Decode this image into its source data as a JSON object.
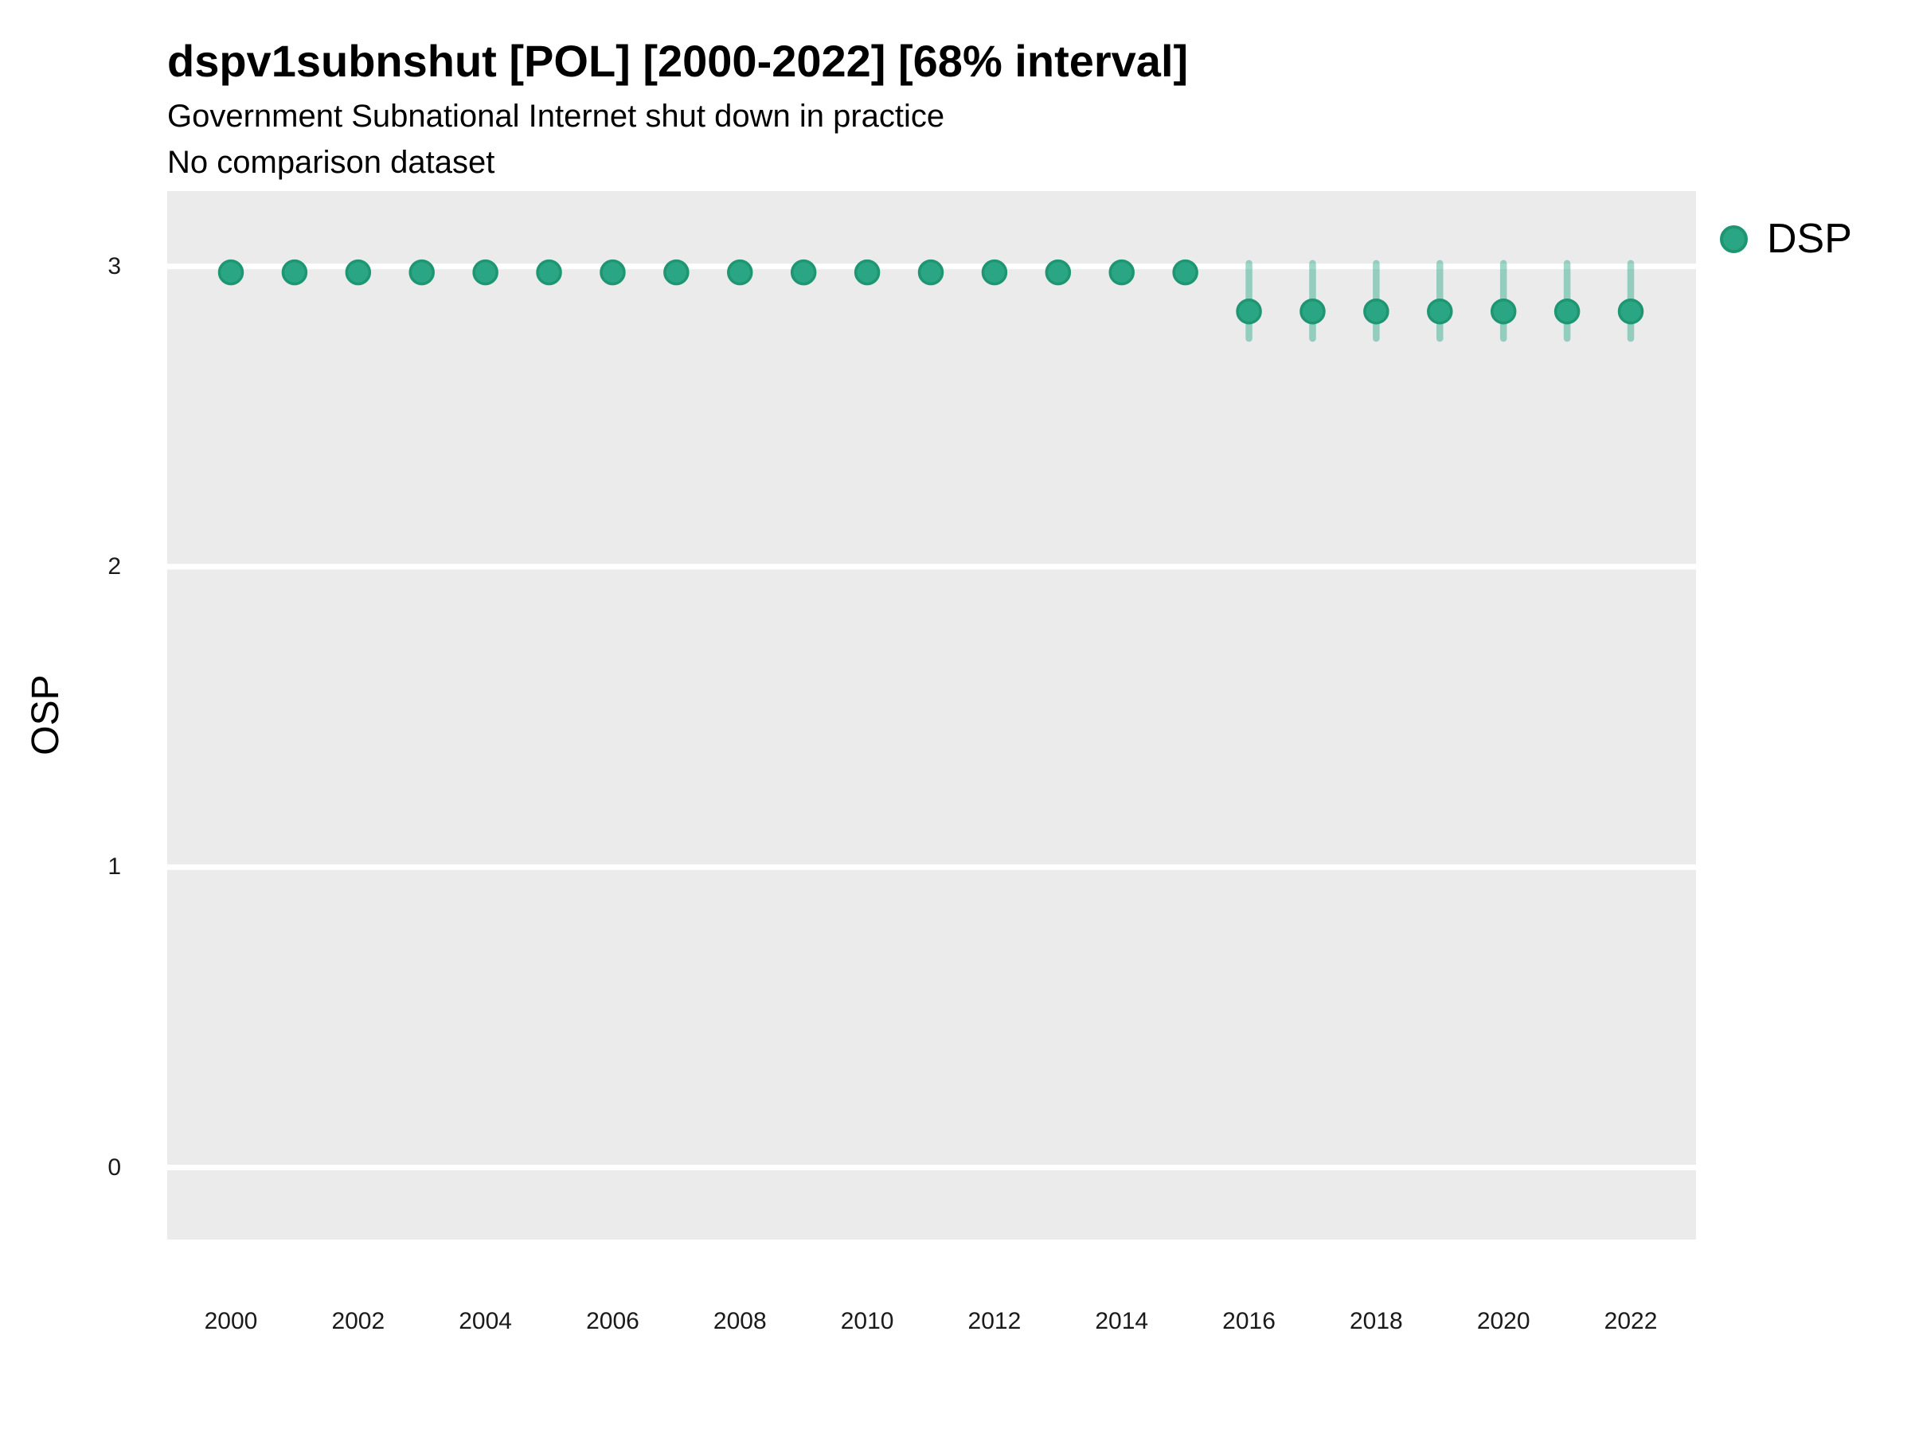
{
  "header": {
    "title": "dspv1subnshut [POL] [2000-2022] [68% interval]",
    "subtitle": "Government Subnational Internet shut down in practice",
    "comparison_note": "No comparison dataset"
  },
  "legend": {
    "label": "DSP"
  },
  "chart_data": {
    "type": "scatter",
    "title": "dspv1subnshut [POL] [2000-2022] [68% interval]",
    "subtitle": "Government Subnational Internet shut down in practice",
    "note": "No comparison dataset",
    "xlabel": "",
    "ylabel": "OSP",
    "legend_position": "right",
    "legend_entries": [
      "DSP"
    ],
    "grid": "horizontal major gridlines only, white on grey panel; no vertical gridlines",
    "x": [
      2000,
      2001,
      2002,
      2003,
      2004,
      2005,
      2006,
      2007,
      2008,
      2009,
      2010,
      2011,
      2012,
      2013,
      2014,
      2015,
      2016,
      2017,
      2018,
      2019,
      2020,
      2021,
      2022
    ],
    "series": [
      {
        "name": "DSP",
        "est": [
          2.98,
          2.98,
          2.98,
          2.98,
          2.98,
          2.98,
          2.98,
          2.98,
          2.98,
          2.98,
          2.98,
          2.98,
          2.98,
          2.98,
          2.98,
          2.98,
          2.85,
          2.85,
          2.85,
          2.85,
          2.85,
          2.85,
          2.85
        ],
        "lo": [
          2.95,
          2.95,
          2.95,
          2.95,
          2.95,
          2.95,
          2.95,
          2.95,
          2.95,
          2.95,
          2.95,
          2.95,
          2.95,
          2.95,
          2.95,
          2.95,
          2.76,
          2.76,
          2.76,
          2.76,
          2.76,
          2.76,
          2.76
        ],
        "hi": [
          3.0,
          3.0,
          3.0,
          3.0,
          3.0,
          3.0,
          3.0,
          3.0,
          3.0,
          3.0,
          3.0,
          3.0,
          3.0,
          3.0,
          3.0,
          3.0,
          3.01,
          3.01,
          3.01,
          3.01,
          3.01,
          3.01,
          3.01
        ]
      }
    ],
    "interval_label": "68% interval",
    "yticks": [
      0,
      1,
      2,
      3
    ],
    "xticks": [
      2000,
      2002,
      2004,
      2006,
      2008,
      2010,
      2012,
      2014,
      2016,
      2018,
      2020,
      2022
    ],
    "xlim": [
      1999,
      2023.1
    ],
    "ylim": [
      -0.24,
      3.25
    ],
    "colors": {
      "point_fill": "#2aa685",
      "point_stroke": "#1e9671",
      "interval": "rgba(42,166,133,0.45)",
      "panel_background": "#ebebeb",
      "gridline": "#ffffff",
      "text": "#000000"
    }
  }
}
